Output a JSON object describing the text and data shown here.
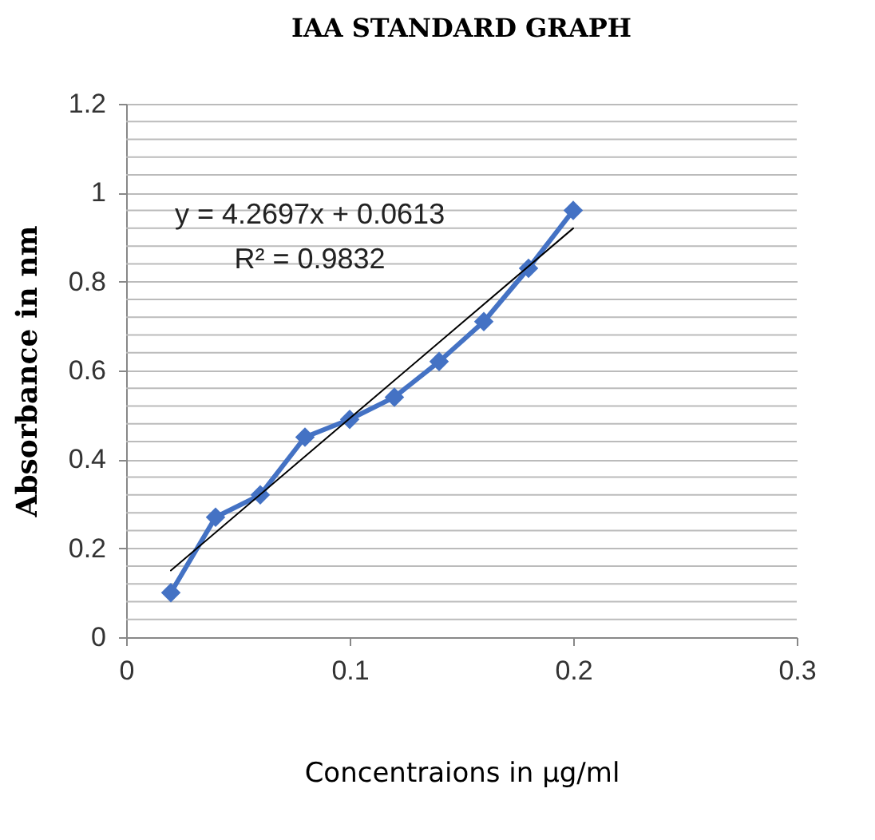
{
  "chart_data": {
    "type": "line",
    "title": "IAA STANDARD GRAPH",
    "xlabel": "Concentraions in µg/ml",
    "ylabel": "Absorbance in nm",
    "x": [
      0.02,
      0.04,
      0.06,
      0.08,
      0.1,
      0.12,
      0.14,
      0.16,
      0.18,
      0.2
    ],
    "series": [
      {
        "color": "#4472c4",
        "values": [
          0.1,
          0.27,
          0.32,
          0.45,
          0.49,
          0.54,
          0.62,
          0.71,
          0.83,
          0.96
        ],
        "marker": "diamond"
      },
      {
        "type": "line",
        "color": "#000000",
        "x": [
          0.02,
          0.2
        ],
        "values": [
          0.15,
          0.92
        ],
        "marker": "none"
      }
    ],
    "annotations": [
      "y = 4.2697x + 0.0613",
      "R² = 0.9832"
    ],
    "xlim": [
      0,
      0.3
    ],
    "xticks": [
      0,
      0.1,
      0.2,
      0.3
    ],
    "ylim": [
      0,
      1.2
    ],
    "yticks": [
      0,
      {
        "value": 0.04,
        "label": null
      },
      {
        "value": 0.08,
        "label": null
      },
      {
        "value": 0.12,
        "label": null
      },
      {
        "value": 0.16,
        "label": null
      },
      0.2,
      {
        "value": 0.24,
        "label": null
      },
      {
        "value": 0.28,
        "label": null
      },
      {
        "value": 0.32,
        "label": null
      },
      {
        "value": 0.36,
        "label": null
      },
      0.4,
      {
        "value": 0.44,
        "label": null
      },
      {
        "value": 0.48,
        "label": null
      },
      {
        "value": 0.52,
        "label": null
      },
      {
        "value": 0.56,
        "label": null
      },
      0.6,
      {
        "value": 0.64,
        "label": null
      },
      {
        "value": 0.68,
        "label": null
      },
      {
        "value": 0.72,
        "label": null
      },
      {
        "value": 0.76,
        "label": null
      },
      0.8,
      {
        "value": 0.84,
        "label": null
      },
      {
        "value": 0.88,
        "label": null
      },
      {
        "value": 0.92,
        "label": null
      },
      {
        "value": 0.96,
        "label": null
      },
      1,
      {
        "value": 1.04,
        "label": null
      },
      {
        "value": 1.08,
        "label": null
      },
      {
        "value": 1.12,
        "label": null
      },
      {
        "value": 1.16,
        "label": null
      },
      1.2
    ],
    "grid": "y",
    "legend": false
  }
}
